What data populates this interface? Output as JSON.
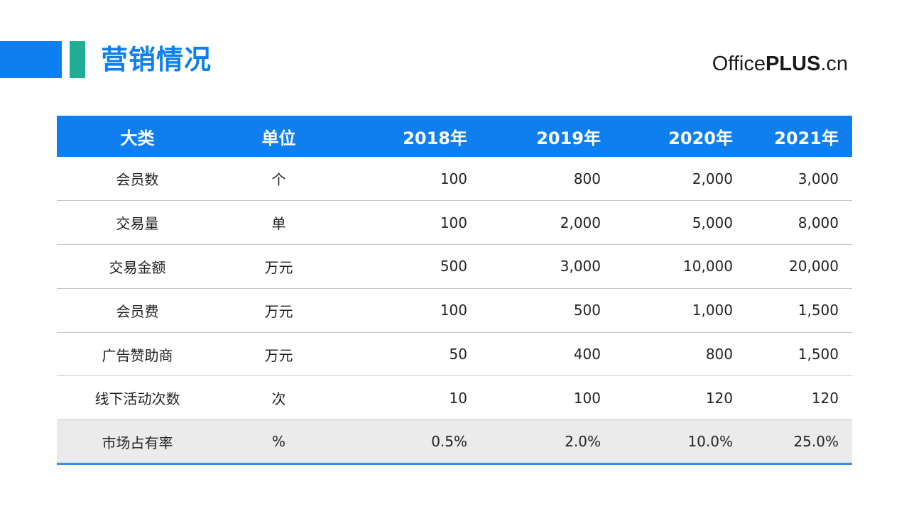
{
  "header": {
    "title": "营销情况",
    "brand_prefix": "Office",
    "brand_bold": "PLUS",
    "brand_suffix": ".cn"
  },
  "table": {
    "columns": [
      "大类",
      "单位",
      "2018年",
      "2019年",
      "2020年",
      "2021年"
    ],
    "rows": [
      [
        "会员数",
        "个",
        "100",
        "800",
        "2,000",
        "3,000"
      ],
      [
        "交易量",
        "单",
        "100",
        "2,000",
        "5,000",
        "8,000"
      ],
      [
        "交易金额",
        "万元",
        "500",
        "3,000",
        "10,000",
        "20,000"
      ],
      [
        "会员费",
        "万元",
        "100",
        "500",
        "1,000",
        "1,500"
      ],
      [
        "广告赞助商",
        "万元",
        "50",
        "400",
        "800",
        "1,500"
      ],
      [
        "线下活动次数",
        "次",
        "10",
        "100",
        "120",
        "120"
      ],
      [
        "市场占有率",
        "%",
        "0.5%",
        "2.0%",
        "10.0%",
        "25.0%"
      ]
    ]
  },
  "colors": {
    "primary_blue": "#0f7ff0",
    "accent_teal": "#1fae95",
    "last_row_bg": "#ebebeb"
  }
}
